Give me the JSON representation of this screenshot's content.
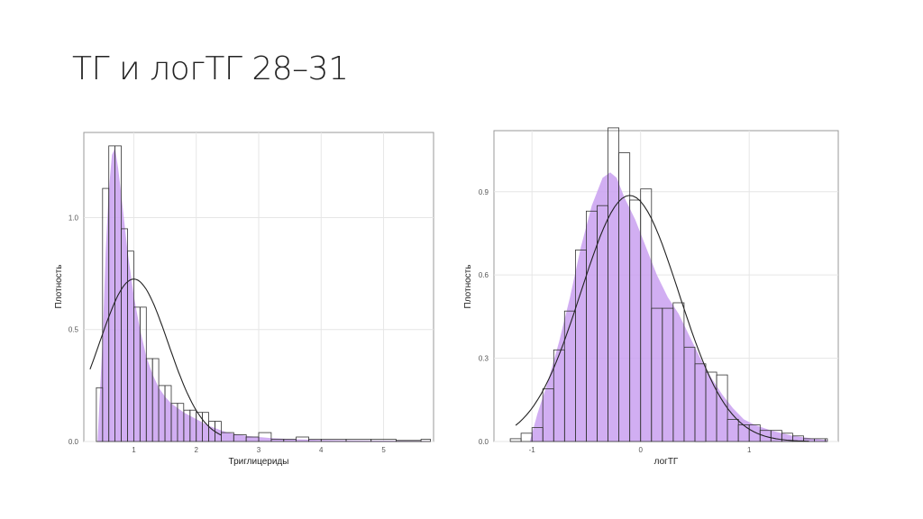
{
  "slide": {
    "title": "ТГ и логТГ 28–31"
  },
  "colors": {
    "density_fill": "#c9a0f0",
    "hist_stroke": "#333333",
    "normal_curve": "#222222",
    "grid": "#e6e6e6",
    "frame": "#999999"
  },
  "chart_data": [
    {
      "type": "bar",
      "subtype": "histogram-with-density",
      "title": "",
      "xlabel": "Триглицериды",
      "ylabel": "Плотность",
      "xlim": [
        0.2,
        5.8
      ],
      "ylim": [
        0,
        1.38
      ],
      "xticks": [
        1,
        2,
        3,
        4,
        5
      ],
      "yticks": [
        0.0,
        0.5,
        1.0
      ],
      "ytick_labels": [
        "0.0",
        "0.5",
        "1.0"
      ],
      "grid": true,
      "bins": [
        {
          "x0": 0.4,
          "x1": 0.5,
          "y": 0.24
        },
        {
          "x0": 0.5,
          "x1": 0.6,
          "y": 1.13
        },
        {
          "x0": 0.6,
          "x1": 0.7,
          "y": 1.32
        },
        {
          "x0": 0.7,
          "x1": 0.8,
          "y": 1.32
        },
        {
          "x0": 0.8,
          "x1": 0.9,
          "y": 0.95
        },
        {
          "x0": 0.9,
          "x1": 1.0,
          "y": 0.85
        },
        {
          "x0": 1.0,
          "x1": 1.1,
          "y": 0.6
        },
        {
          "x0": 1.1,
          "x1": 1.2,
          "y": 0.6
        },
        {
          "x0": 1.2,
          "x1": 1.3,
          "y": 0.37
        },
        {
          "x0": 1.3,
          "x1": 1.4,
          "y": 0.37
        },
        {
          "x0": 1.4,
          "x1": 1.5,
          "y": 0.25
        },
        {
          "x0": 1.5,
          "x1": 1.6,
          "y": 0.25
        },
        {
          "x0": 1.6,
          "x1": 1.7,
          "y": 0.17
        },
        {
          "x0": 1.7,
          "x1": 1.8,
          "y": 0.17
        },
        {
          "x0": 1.8,
          "x1": 1.9,
          "y": 0.14
        },
        {
          "x0": 1.9,
          "x1": 2.0,
          "y": 0.14
        },
        {
          "x0": 2.0,
          "x1": 2.1,
          "y": 0.13
        },
        {
          "x0": 2.1,
          "x1": 2.2,
          "y": 0.13
        },
        {
          "x0": 2.2,
          "x1": 2.3,
          "y": 0.09
        },
        {
          "x0": 2.3,
          "x1": 2.4,
          "y": 0.09
        },
        {
          "x0": 2.4,
          "x1": 2.6,
          "y": 0.04
        },
        {
          "x0": 2.6,
          "x1": 2.8,
          "y": 0.03
        },
        {
          "x0": 2.8,
          "x1": 3.0,
          "y": 0.02
        },
        {
          "x0": 3.0,
          "x1": 3.2,
          "y": 0.04
        },
        {
          "x0": 3.2,
          "x1": 3.4,
          "y": 0.01
        },
        {
          "x0": 3.4,
          "x1": 3.6,
          "y": 0.01
        },
        {
          "x0": 3.6,
          "x1": 3.8,
          "y": 0.02
        },
        {
          "x0": 3.8,
          "x1": 4.0,
          "y": 0.01
        },
        {
          "x0": 4.0,
          "x1": 4.4,
          "y": 0.01
        },
        {
          "x0": 4.4,
          "x1": 4.8,
          "y": 0.01
        },
        {
          "x0": 4.8,
          "x1": 5.2,
          "y": 0.01
        },
        {
          "x0": 5.2,
          "x1": 5.6,
          "y": 0.005
        },
        {
          "x0": 5.6,
          "x1": 5.75,
          "y": 0.01
        }
      ],
      "density_curve": {
        "x": [
          0.42,
          0.5,
          0.55,
          0.6,
          0.65,
          0.7,
          0.75,
          0.8,
          0.9,
          1.0,
          1.1,
          1.2,
          1.3,
          1.4,
          1.5,
          1.6,
          1.8,
          2.0,
          2.2,
          2.5,
          2.8,
          3.2,
          3.6,
          4.0,
          4.5,
          5.0,
          5.5,
          5.75
        ],
        "y": [
          0.0,
          0.45,
          0.85,
          1.12,
          1.28,
          1.31,
          1.22,
          1.1,
          0.85,
          0.65,
          0.5,
          0.38,
          0.3,
          0.24,
          0.2,
          0.17,
          0.13,
          0.1,
          0.07,
          0.04,
          0.025,
          0.015,
          0.01,
          0.007,
          0.005,
          0.004,
          0.003,
          0.002
        ]
      },
      "normal_curve": {
        "mean": 1.0,
        "sd": 0.55,
        "xrange": [
          0.3,
          2.4
        ]
      }
    },
    {
      "type": "bar",
      "subtype": "histogram-with-density",
      "title": "",
      "xlabel": "логТГ",
      "ylabel": "Плотность",
      "xlim": [
        -1.35,
        1.82
      ],
      "ylim": [
        0,
        1.12
      ],
      "xticks": [
        -1,
        0,
        1
      ],
      "yticks": [
        0.0,
        0.3,
        0.6,
        0.9
      ],
      "ytick_labels": [
        "0.0",
        "0.3",
        "0.6",
        "0.9"
      ],
      "grid": true,
      "bins": [
        {
          "x0": -1.2,
          "x1": -1.1,
          "y": 0.01
        },
        {
          "x0": -1.1,
          "x1": -1.0,
          "y": 0.03
        },
        {
          "x0": -1.0,
          "x1": -0.9,
          "y": 0.05
        },
        {
          "x0": -0.9,
          "x1": -0.8,
          "y": 0.19
        },
        {
          "x0": -0.8,
          "x1": -0.7,
          "y": 0.33
        },
        {
          "x0": -0.7,
          "x1": -0.6,
          "y": 0.47
        },
        {
          "x0": -0.6,
          "x1": -0.5,
          "y": 0.69
        },
        {
          "x0": -0.5,
          "x1": -0.4,
          "y": 0.83
        },
        {
          "x0": -0.4,
          "x1": -0.3,
          "y": 0.85
        },
        {
          "x0": -0.3,
          "x1": -0.2,
          "y": 1.13
        },
        {
          "x0": -0.2,
          "x1": -0.1,
          "y": 1.04
        },
        {
          "x0": -0.1,
          "x1": 0.0,
          "y": 0.87
        },
        {
          "x0": 0.0,
          "x1": 0.1,
          "y": 0.91
        },
        {
          "x0": 0.1,
          "x1": 0.2,
          "y": 0.48
        },
        {
          "x0": 0.2,
          "x1": 0.3,
          "y": 0.48
        },
        {
          "x0": 0.3,
          "x1": 0.4,
          "y": 0.5
        },
        {
          "x0": 0.4,
          "x1": 0.5,
          "y": 0.34
        },
        {
          "x0": 0.5,
          "x1": 0.6,
          "y": 0.28
        },
        {
          "x0": 0.6,
          "x1": 0.7,
          "y": 0.25
        },
        {
          "x0": 0.7,
          "x1": 0.8,
          "y": 0.24
        },
        {
          "x0": 0.8,
          "x1": 0.9,
          "y": 0.08
        },
        {
          "x0": 0.9,
          "x1": 1.0,
          "y": 0.06
        },
        {
          "x0": 1.0,
          "x1": 1.1,
          "y": 0.06
        },
        {
          "x0": 1.1,
          "x1": 1.2,
          "y": 0.04
        },
        {
          "x0": 1.2,
          "x1": 1.3,
          "y": 0.04
        },
        {
          "x0": 1.3,
          "x1": 1.4,
          "y": 0.03
        },
        {
          "x0": 1.4,
          "x1": 1.5,
          "y": 0.02
        },
        {
          "x0": 1.5,
          "x1": 1.6,
          "y": 0.01
        },
        {
          "x0": 1.6,
          "x1": 1.7,
          "y": 0.01
        },
        {
          "x0": 1.7,
          "x1": 1.72,
          "y": 0.01
        }
      ],
      "density_curve": {
        "x": [
          -1.02,
          -0.95,
          -0.85,
          -0.75,
          -0.65,
          -0.55,
          -0.45,
          -0.35,
          -0.28,
          -0.22,
          -0.15,
          -0.05,
          0.05,
          0.15,
          0.25,
          0.35,
          0.45,
          0.55,
          0.65,
          0.75,
          0.85,
          0.95,
          1.05,
          1.2,
          1.4,
          1.6,
          1.72
        ],
        "y": [
          0.0,
          0.1,
          0.22,
          0.36,
          0.52,
          0.7,
          0.85,
          0.95,
          0.97,
          0.95,
          0.88,
          0.8,
          0.7,
          0.6,
          0.52,
          0.46,
          0.38,
          0.3,
          0.23,
          0.17,
          0.12,
          0.08,
          0.06,
          0.04,
          0.02,
          0.01,
          0.005
        ]
      },
      "normal_curve": {
        "mean": -0.1,
        "sd": 0.45,
        "xrange": [
          -1.15,
          1.55
        ]
      }
    }
  ]
}
